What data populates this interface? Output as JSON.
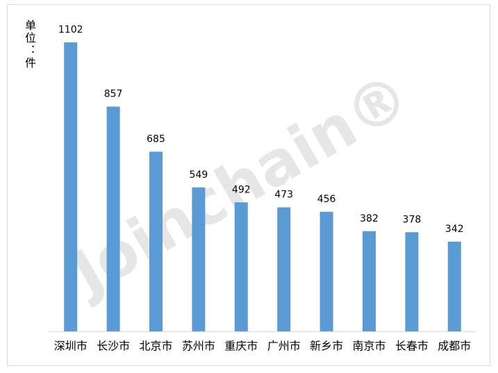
{
  "chart_data": {
    "type": "bar",
    "y_label": "单位：件",
    "watermark": "Joinchain®",
    "categories": [
      "深圳市",
      "长沙市",
      "北京市",
      "苏州市",
      "重庆市",
      "广州市",
      "新乡市",
      "南京市",
      "长春市",
      "成都市"
    ],
    "values": [
      1102,
      857,
      685,
      549,
      492,
      473,
      456,
      382,
      378,
      342
    ],
    "color": "#5b9bd5",
    "ylim": [
      0,
      1200
    ]
  }
}
